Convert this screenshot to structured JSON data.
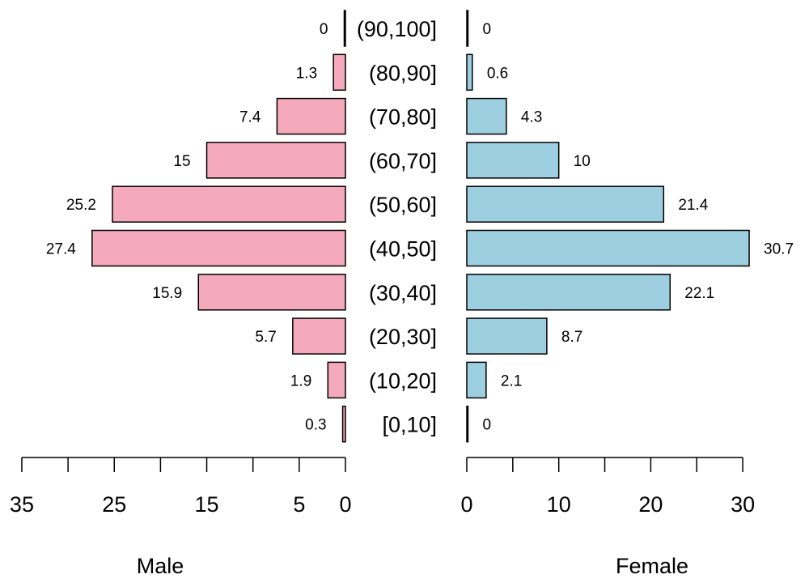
{
  "chart_data": {
    "type": "bar",
    "orientation": "horizontal",
    "layout": "population-pyramid",
    "categories": [
      "[0,10]",
      "(10,20]",
      "(20,30]",
      "(30,40]",
      "(40,50]",
      "(50,60]",
      "(60,70]",
      "(70,80]",
      "(80,90]",
      "(90,100]"
    ],
    "series": [
      {
        "name": "Male",
        "side": "left",
        "color": "#F4AABB",
        "values": [
          0.3,
          1.9,
          5.7,
          15.9,
          27.4,
          25.2,
          15,
          7.4,
          1.3,
          0
        ],
        "value_labels": [
          "0.3",
          "1.9",
          "5.7",
          "15.9",
          "27.4",
          "25.2",
          "15",
          "7.4",
          "1.3",
          "0"
        ]
      },
      {
        "name": "Female",
        "side": "right",
        "color": "#9DCFE0",
        "values": [
          0,
          2.1,
          8.7,
          22.1,
          30.7,
          21.4,
          10,
          4.3,
          0.6,
          0
        ],
        "value_labels": [
          "0",
          "2.1",
          "8.7",
          "22.1",
          "30.7",
          "21.4",
          "10",
          "4.3",
          "0.6",
          "0"
        ]
      }
    ],
    "left_axis": {
      "title": "Male",
      "range": [
        0,
        35
      ],
      "ticks": [
        0,
        5,
        10,
        15,
        20,
        25,
        30,
        35
      ],
      "tick_labels": [
        {
          "value": 0,
          "label": "0"
        },
        {
          "value": 5,
          "label": "5"
        },
        {
          "value": 15,
          "label": "15"
        },
        {
          "value": 25,
          "label": "25"
        },
        {
          "value": 35,
          "label": "35"
        }
      ]
    },
    "right_axis": {
      "title": "Female",
      "range": [
        0,
        30
      ],
      "ticks": [
        0,
        5,
        10,
        15,
        20,
        25,
        30
      ],
      "tick_labels": [
        {
          "value": 0,
          "label": "0"
        },
        {
          "value": 10,
          "label": "10"
        },
        {
          "value": 20,
          "label": "20"
        },
        {
          "value": 30,
          "label": "30"
        }
      ]
    },
    "grid": false,
    "legend": "none"
  }
}
